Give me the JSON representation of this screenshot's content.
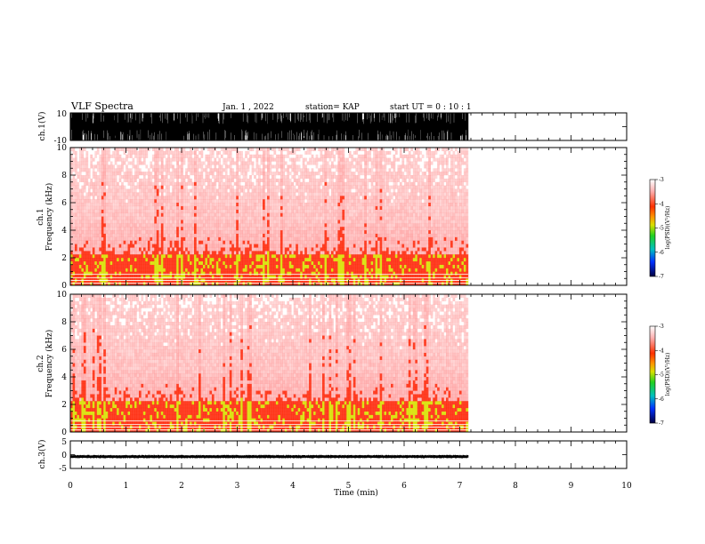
{
  "header": {
    "title": "VLF Spectra",
    "date": "Jan. 1 , 2022",
    "station": "station= KAP",
    "start": "start  UT =   0 : 10 : 1"
  },
  "colors": {
    "waveform": "#000000",
    "spec_low": "#ff8080",
    "spec_mid": "#ff2000",
    "spec_high": "#d8e000"
  },
  "chart_data": [
    {
      "type": "line",
      "panel": "ch1-waveform",
      "ylabel": "ch.1(V)",
      "ylim": [
        -10,
        10
      ],
      "yticks": [
        "10",
        "-10"
      ],
      "xlim": [
        0,
        10
      ],
      "data_extent_x": [
        0,
        7.15
      ],
      "amplitude_range": [
        -10,
        10
      ]
    },
    {
      "type": "heatmap",
      "panel": "ch1-spectrogram",
      "ylabel": "Frequency (kHz)",
      "channel_label": "ch.1",
      "ylim": [
        0,
        10
      ],
      "yticks": [
        "0",
        "2",
        "4",
        "6",
        "8",
        "10"
      ],
      "xlim": [
        0,
        10
      ],
      "data_extent_x": [
        0,
        7.15
      ],
      "colorbar": {
        "label": "log(PSD)(V²/Hz)",
        "range": [
          -7,
          -3
        ],
        "ticks": [
          "-3",
          "-4",
          "-5",
          "-6",
          "-7"
        ]
      }
    },
    {
      "type": "heatmap",
      "panel": "ch2-spectrogram",
      "ylabel": "Frequency (kHz)",
      "channel_label": "ch.2",
      "ylim": [
        0,
        10
      ],
      "yticks": [
        "0",
        "2",
        "4",
        "6",
        "8",
        "10"
      ],
      "xlim": [
        0,
        10
      ],
      "data_extent_x": [
        0,
        7.15
      ],
      "colorbar": {
        "label": "log(PSD)(V²/Hz)",
        "range": [
          -7,
          -3
        ],
        "ticks": [
          "-3",
          "-4",
          "-5",
          "-6",
          "-7"
        ]
      }
    },
    {
      "type": "line",
      "panel": "ch3-waveform",
      "ylabel": "ch.3(V)",
      "ylim": [
        -5,
        5
      ],
      "yticks": [
        "5",
        "0",
        "-5"
      ],
      "xlim": [
        0,
        10
      ],
      "data_extent_x": [
        0,
        7.15
      ],
      "amplitude_range": [
        -1.2,
        -0.2
      ]
    }
  ],
  "xaxis": {
    "label": "Time (min)",
    "ticks": [
      "0",
      "1",
      "2",
      "3",
      "4",
      "5",
      "6",
      "7",
      "8",
      "9",
      "10"
    ]
  }
}
